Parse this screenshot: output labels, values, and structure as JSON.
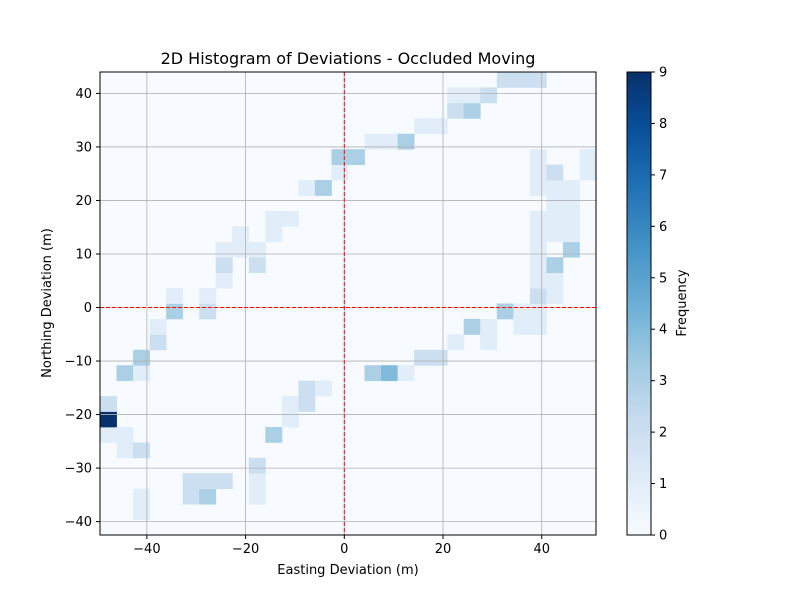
{
  "chart_data": {
    "type": "heatmap",
    "title": "2D Histogram of Deviations - Occluded Moving",
    "xlabel": "Easting Deviation (m)",
    "ylabel": "Northing Deviation (m)",
    "xlim": [
      -49.5,
      51.0
    ],
    "ylim": [
      -42.5,
      44.0
    ],
    "x_ticks": [
      -40,
      -20,
      0,
      20,
      40
    ],
    "y_ticks": [
      -40,
      -30,
      -20,
      -10,
      0,
      10,
      20,
      30,
      40
    ],
    "grid": true,
    "reference_lines": {
      "x": 0,
      "y": 0,
      "color": "#ff0000",
      "style": "dashed"
    },
    "bins": {
      "nx": 30,
      "ny": 30
    },
    "colorbar": {
      "label": "Frequency",
      "min": 0,
      "max": 9,
      "ticks": [
        0,
        1,
        2,
        3,
        4,
        5,
        6,
        7,
        8,
        9
      ],
      "colormap": "Blues",
      "stops": [
        "#f7fbff",
        "#deebf7",
        "#c6dbef",
        "#9ecae1",
        "#6baed6",
        "#4292c6",
        "#2171b5",
        "#08519c",
        "#08306b"
      ]
    },
    "cells": [
      {
        "ix": 0,
        "iy": 6,
        "count": 1
      },
      {
        "ix": 0,
        "iy": 7,
        "count": 9
      },
      {
        "ix": 0,
        "iy": 8,
        "count": 2
      },
      {
        "ix": 1,
        "iy": 5,
        "count": 1
      },
      {
        "ix": 1,
        "iy": 6,
        "count": 1
      },
      {
        "ix": 1,
        "iy": 10,
        "count": 3
      },
      {
        "ix": 2,
        "iy": 1,
        "count": 1
      },
      {
        "ix": 2,
        "iy": 2,
        "count": 1
      },
      {
        "ix": 2,
        "iy": 5,
        "count": 2
      },
      {
        "ix": 2,
        "iy": 10,
        "count": 1
      },
      {
        "ix": 2,
        "iy": 11,
        "count": 3
      },
      {
        "ix": 3,
        "iy": 12,
        "count": 2
      },
      {
        "ix": 3,
        "iy": 13,
        "count": 1
      },
      {
        "ix": 4,
        "iy": 14,
        "count": 3
      },
      {
        "ix": 4,
        "iy": 15,
        "count": 1
      },
      {
        "ix": 5,
        "iy": 2,
        "count": 2
      },
      {
        "ix": 5,
        "iy": 3,
        "count": 2
      },
      {
        "ix": 6,
        "iy": 2,
        "count": 3
      },
      {
        "ix": 6,
        "iy": 3,
        "count": 2
      },
      {
        "ix": 6,
        "iy": 14,
        "count": 2
      },
      {
        "ix": 6,
        "iy": 15,
        "count": 1
      },
      {
        "ix": 7,
        "iy": 3,
        "count": 2
      },
      {
        "ix": 7,
        "iy": 16,
        "count": 1
      },
      {
        "ix": 7,
        "iy": 17,
        "count": 2
      },
      {
        "ix": 7,
        "iy": 18,
        "count": 1
      },
      {
        "ix": 8,
        "iy": 18,
        "count": 1
      },
      {
        "ix": 8,
        "iy": 19,
        "count": 1
      },
      {
        "ix": 9,
        "iy": 2,
        "count": 1
      },
      {
        "ix": 9,
        "iy": 3,
        "count": 1
      },
      {
        "ix": 9,
        "iy": 4,
        "count": 2
      },
      {
        "ix": 9,
        "iy": 17,
        "count": 2
      },
      {
        "ix": 9,
        "iy": 18,
        "count": 1
      },
      {
        "ix": 10,
        "iy": 6,
        "count": 3
      },
      {
        "ix": 10,
        "iy": 19,
        "count": 1
      },
      {
        "ix": 10,
        "iy": 20,
        "count": 1
      },
      {
        "ix": 11,
        "iy": 7,
        "count": 1
      },
      {
        "ix": 11,
        "iy": 8,
        "count": 1
      },
      {
        "ix": 11,
        "iy": 20,
        "count": 1
      },
      {
        "ix": 12,
        "iy": 8,
        "count": 2
      },
      {
        "ix": 12,
        "iy": 9,
        "count": 2
      },
      {
        "ix": 12,
        "iy": 22,
        "count": 1
      },
      {
        "ix": 13,
        "iy": 9,
        "count": 1
      },
      {
        "ix": 13,
        "iy": 22,
        "count": 3
      },
      {
        "ix": 14,
        "iy": 23,
        "count": 1
      },
      {
        "ix": 14,
        "iy": 24,
        "count": 3
      },
      {
        "ix": 15,
        "iy": 24,
        "count": 3
      },
      {
        "ix": 16,
        "iy": 10,
        "count": 3
      },
      {
        "ix": 16,
        "iy": 25,
        "count": 1
      },
      {
        "ix": 17,
        "iy": 10,
        "count": 4
      },
      {
        "ix": 17,
        "iy": 25,
        "count": 1
      },
      {
        "ix": 18,
        "iy": 10,
        "count": 1
      },
      {
        "ix": 18,
        "iy": 25,
        "count": 3
      },
      {
        "ix": 19,
        "iy": 11,
        "count": 2
      },
      {
        "ix": 19,
        "iy": 26,
        "count": 1
      },
      {
        "ix": 20,
        "iy": 11,
        "count": 2
      },
      {
        "ix": 20,
        "iy": 26,
        "count": 1
      },
      {
        "ix": 21,
        "iy": 12,
        "count": 1
      },
      {
        "ix": 21,
        "iy": 27,
        "count": 2
      },
      {
        "ix": 21,
        "iy": 28,
        "count": 1
      },
      {
        "ix": 22,
        "iy": 13,
        "count": 3
      },
      {
        "ix": 22,
        "iy": 27,
        "count": 3
      },
      {
        "ix": 22,
        "iy": 28,
        "count": 1
      },
      {
        "ix": 23,
        "iy": 12,
        "count": 1
      },
      {
        "ix": 23,
        "iy": 13,
        "count": 1
      },
      {
        "ix": 23,
        "iy": 28,
        "count": 2
      },
      {
        "ix": 24,
        "iy": 14,
        "count": 3
      },
      {
        "ix": 24,
        "iy": 29,
        "count": 2
      },
      {
        "ix": 25,
        "iy": 13,
        "count": 1
      },
      {
        "ix": 25,
        "iy": 14,
        "count": 1
      },
      {
        "ix": 25,
        "iy": 29,
        "count": 2
      },
      {
        "ix": 26,
        "iy": 13,
        "count": 1
      },
      {
        "ix": 26,
        "iy": 14,
        "count": 1
      },
      {
        "ix": 26,
        "iy": 15,
        "count": 2
      },
      {
        "ix": 26,
        "iy": 16,
        "count": 1
      },
      {
        "ix": 26,
        "iy": 17,
        "count": 1
      },
      {
        "ix": 26,
        "iy": 18,
        "count": 1
      },
      {
        "ix": 26,
        "iy": 19,
        "count": 1
      },
      {
        "ix": 26,
        "iy": 20,
        "count": 1
      },
      {
        "ix": 26,
        "iy": 22,
        "count": 1
      },
      {
        "ix": 26,
        "iy": 23,
        "count": 1
      },
      {
        "ix": 26,
        "iy": 24,
        "count": 1
      },
      {
        "ix": 26,
        "iy": 29,
        "count": 2
      },
      {
        "ix": 27,
        "iy": 15,
        "count": 1
      },
      {
        "ix": 27,
        "iy": 16,
        "count": 1
      },
      {
        "ix": 27,
        "iy": 17,
        "count": 3
      },
      {
        "ix": 27,
        "iy": 19,
        "count": 1
      },
      {
        "ix": 27,
        "iy": 20,
        "count": 1
      },
      {
        "ix": 27,
        "iy": 21,
        "count": 1
      },
      {
        "ix": 27,
        "iy": 22,
        "count": 1
      },
      {
        "ix": 27,
        "iy": 23,
        "count": 2
      },
      {
        "ix": 28,
        "iy": 18,
        "count": 3
      },
      {
        "ix": 28,
        "iy": 19,
        "count": 1
      },
      {
        "ix": 28,
        "iy": 20,
        "count": 1
      },
      {
        "ix": 28,
        "iy": 21,
        "count": 1
      },
      {
        "ix": 28,
        "iy": 22,
        "count": 1
      },
      {
        "ix": 29,
        "iy": 23,
        "count": 1
      },
      {
        "ix": 29,
        "iy": 24,
        "count": 1
      }
    ]
  }
}
